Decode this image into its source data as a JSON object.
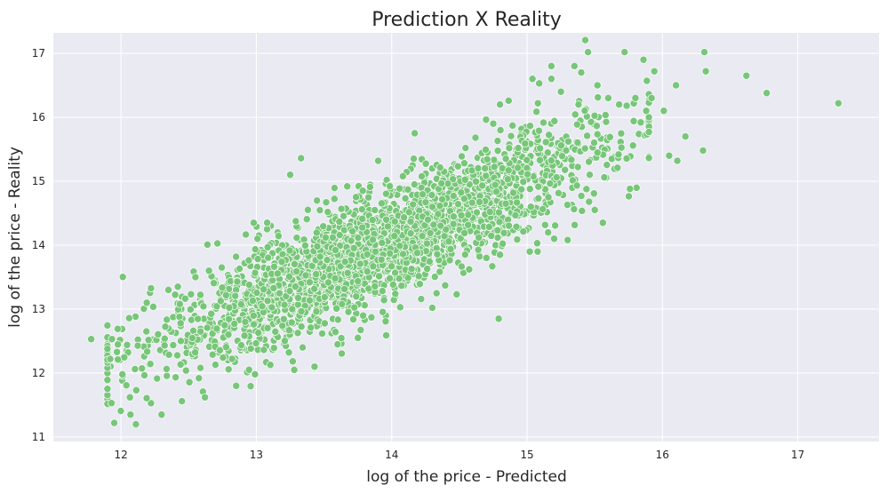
{
  "chart_data": {
    "type": "scatter",
    "title": "Prediction X Reality",
    "xlabel": "log of the price - Predicted",
    "ylabel": "log of the price - Reality",
    "xlim": [
      11.5,
      17.6
    ],
    "ylim": [
      10.93,
      17.32
    ],
    "xticks": [
      12,
      13,
      14,
      15,
      16,
      17
    ],
    "yticks": [
      11,
      12,
      13,
      14,
      15,
      16,
      17
    ],
    "grid": true,
    "colors": {
      "background": "#eaeaf2",
      "point": "#78c679",
      "grid": "#ffffff"
    },
    "bulk_band": {
      "description_free": true,
      "x_range": [
        11.9,
        15.9
      ],
      "slope": 0.95,
      "intercept": 0.75,
      "spread": 0.42,
      "count": 2600
    },
    "points": [
      [
        11.78,
        12.53
      ],
      [
        11.92,
        12.22
      ],
      [
        11.93,
        11.53
      ],
      [
        11.95,
        11.22
      ],
      [
        11.97,
        12.33
      ],
      [
        12.01,
        11.98
      ],
      [
        12.04,
        11.81
      ],
      [
        12.06,
        12.86
      ],
      [
        12.07,
        11.35
      ],
      [
        12.11,
        11.2
      ],
      [
        12.19,
        13.1
      ],
      [
        12.3,
        11.35
      ],
      [
        12.35,
        13.3
      ],
      [
        12.45,
        11.56
      ],
      [
        12.62,
        11.62
      ],
      [
        12.85,
        13.82
      ],
      [
        12.98,
        14.35
      ],
      [
        12.99,
        11.98
      ],
      [
        13.08,
        14.35
      ],
      [
        13.25,
        15.1
      ],
      [
        13.28,
        12.05
      ],
      [
        13.33,
        15.36
      ],
      [
        13.43,
        12.1
      ],
      [
        13.9,
        15.32
      ],
      [
        14.17,
        15.75
      ],
      [
        14.3,
        13.02
      ],
      [
        14.48,
        13.23
      ],
      [
        14.75,
        15.9
      ],
      [
        14.8,
        16.2
      ],
      [
        14.79,
        12.85
      ],
      [
        15.04,
        16.6
      ],
      [
        15.09,
        16.53
      ],
      [
        15.18,
        16.8
      ],
      [
        15.18,
        16.6
      ],
      [
        15.25,
        16.4
      ],
      [
        15.35,
        16.8
      ],
      [
        15.38,
        16.2
      ],
      [
        15.4,
        16.7
      ],
      [
        15.45,
        17.02
      ],
      [
        15.52,
        16.5
      ],
      [
        15.6,
        16.3
      ],
      [
        15.68,
        16.2
      ],
      [
        15.72,
        17.02
      ],
      [
        15.76,
        14.88
      ],
      [
        15.8,
        16.3
      ],
      [
        15.86,
        16.9
      ],
      [
        15.88,
        16.1
      ],
      [
        15.92,
        16.3
      ],
      [
        15.94,
        16.72
      ],
      [
        16.01,
        16.1
      ],
      [
        16.05,
        15.4
      ],
      [
        16.1,
        16.5
      ],
      [
        16.11,
        15.32
      ],
      [
        16.17,
        15.7
      ],
      [
        16.3,
        15.48
      ],
      [
        16.31,
        17.02
      ],
      [
        16.32,
        16.72
      ],
      [
        16.62,
        16.65
      ],
      [
        16.77,
        16.38
      ],
      [
        17.3,
        16.22
      ],
      [
        15.56,
        14.35
      ],
      [
        15.5,
        14.55
      ],
      [
        15.3,
        14.08
      ],
      [
        15.2,
        14.1
      ],
      [
        15.02,
        13.9
      ],
      [
        14.8,
        13.85
      ],
      [
        14.7,
        13.8
      ],
      [
        13.75,
        12.55
      ],
      [
        13.6,
        12.45
      ],
      [
        12.65,
        13.6
      ],
      [
        12.55,
        13.5
      ],
      [
        12.42,
        13.35
      ]
    ]
  }
}
